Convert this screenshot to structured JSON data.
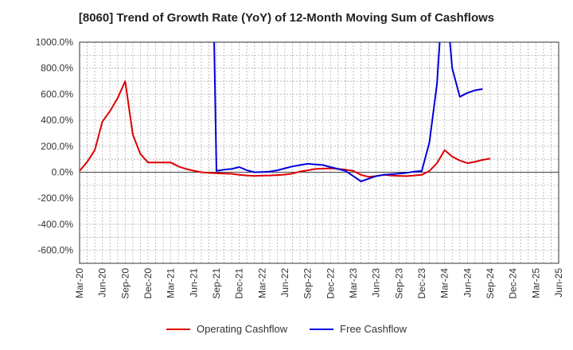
{
  "chart_data": {
    "type": "line",
    "title": "[8060]  Trend of Growth Rate (YoY) of 12-Month Moving Sum of Cashflows",
    "xlabel": "",
    "ylabel": "",
    "ylim": [
      -700,
      1000
    ],
    "y_ticks": [
      "1000.0%",
      "800.0%",
      "600.0%",
      "400.0%",
      "200.0%",
      "0.0%",
      "-200.0%",
      "-400.0%",
      "-600.0%"
    ],
    "y_tick_values": [
      1000,
      800,
      600,
      400,
      200,
      0,
      -200,
      -400,
      -600
    ],
    "x_ticks": [
      "Mar-20",
      "Jun-20",
      "Sep-20",
      "Dec-20",
      "Mar-21",
      "Jun-21",
      "Sep-21",
      "Dec-21",
      "Mar-22",
      "Jun-22",
      "Sep-22",
      "Dec-22",
      "Mar-23",
      "Jun-23",
      "Sep-23",
      "Dec-23",
      "Mar-24",
      "Jun-24",
      "Sep-24",
      "Dec-24",
      "Mar-25",
      "Jun-25"
    ],
    "grid": true,
    "legend_position": "bottom",
    "series": [
      {
        "name": "Operating Cashflow",
        "color": "#dd0000",
        "points": [
          [
            0,
            10
          ],
          [
            1,
            80
          ],
          [
            2,
            170
          ],
          [
            3,
            390
          ],
          [
            4,
            470
          ],
          [
            5,
            570
          ],
          [
            6,
            700
          ],
          [
            7,
            290
          ],
          [
            8,
            140
          ],
          [
            9,
            75
          ],
          [
            10,
            75
          ],
          [
            11,
            75
          ],
          [
            12,
            75
          ],
          [
            13,
            45
          ],
          [
            14,
            25
          ],
          [
            15,
            12
          ],
          [
            16,
            0
          ],
          [
            17,
            -5
          ],
          [
            18,
            -8
          ],
          [
            19,
            -10
          ],
          [
            20,
            -12
          ],
          [
            21,
            -20
          ],
          [
            22,
            -25
          ],
          [
            23,
            -28
          ],
          [
            24,
            -26
          ],
          [
            25,
            -25
          ],
          [
            26,
            -22
          ],
          [
            27,
            -18
          ],
          [
            28,
            -10
          ],
          [
            29,
            5
          ],
          [
            30,
            15
          ],
          [
            31,
            25
          ],
          [
            32,
            28
          ],
          [
            33,
            30
          ],
          [
            34,
            25
          ],
          [
            35,
            20
          ],
          [
            36,
            10
          ],
          [
            37,
            -20
          ],
          [
            38,
            -35
          ],
          [
            39,
            -30
          ],
          [
            40,
            -20
          ],
          [
            41,
            -25
          ],
          [
            42,
            -28
          ],
          [
            43,
            -30
          ],
          [
            44,
            -25
          ],
          [
            45,
            -20
          ],
          [
            46,
            10
          ],
          [
            47,
            70
          ],
          [
            48,
            170
          ],
          [
            49,
            120
          ],
          [
            50,
            90
          ],
          [
            51,
            70
          ],
          [
            52,
            80
          ],
          [
            53,
            95
          ],
          [
            54,
            105
          ]
        ]
      },
      {
        "name": "Free Cashflow",
        "color": "#0000dd",
        "segments": [
          [
            [
              17.7,
              1000
            ],
            [
              18,
              10
            ],
            [
              19,
              20
            ],
            [
              20,
              25
            ],
            [
              21,
              40
            ],
            [
              22,
              15
            ],
            [
              23,
              0
            ],
            [
              24,
              2
            ],
            [
              25,
              5
            ],
            [
              26,
              15
            ],
            [
              27,
              30
            ],
            [
              28,
              45
            ],
            [
              29,
              55
            ],
            [
              30,
              65
            ],
            [
              31,
              60
            ],
            [
              32,
              55
            ],
            [
              33,
              40
            ],
            [
              34,
              25
            ],
            [
              35,
              10
            ],
            [
              36,
              -30
            ],
            [
              37,
              -70
            ],
            [
              38,
              -50
            ],
            [
              39,
              -30
            ],
            [
              40,
              -20
            ],
            [
              41,
              -15
            ],
            [
              42,
              -10
            ],
            [
              43,
              -5
            ],
            [
              44,
              5
            ],
            [
              45,
              10
            ],
            [
              46,
              230
            ],
            [
              47,
              680
            ],
            [
              47.35,
              1000
            ]
          ],
          [
            [
              48.7,
              1000
            ],
            [
              49,
              800
            ],
            [
              50,
              580
            ],
            [
              51,
              610
            ],
            [
              52,
              630
            ],
            [
              53,
              640
            ]
          ]
        ]
      }
    ]
  }
}
